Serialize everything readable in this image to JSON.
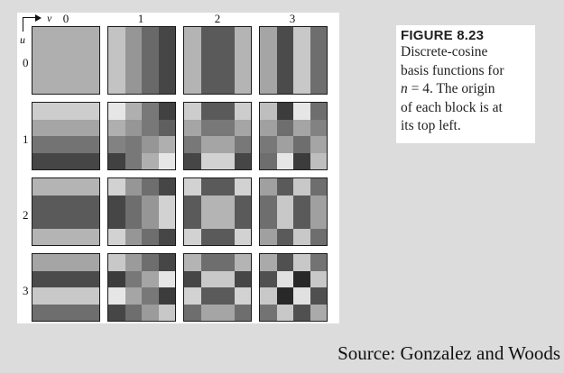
{
  "figure": {
    "axis_v_label": "v",
    "axis_u_label": "u",
    "column_labels": [
      "0",
      "1",
      "2",
      "3"
    ],
    "row_labels": [
      "0",
      "1",
      "2",
      "3"
    ],
    "blocks": [
      [
        [
          [
            175,
            175,
            175,
            175
          ],
          [
            175,
            175,
            175,
            175
          ],
          [
            175,
            175,
            175,
            175
          ],
          [
            175,
            175,
            175,
            175
          ]
        ],
        [
          [
            195,
            150,
            105,
            70
          ],
          [
            195,
            150,
            105,
            70
          ],
          [
            195,
            150,
            105,
            70
          ],
          [
            195,
            150,
            105,
            70
          ]
        ],
        [
          [
            180,
            90,
            90,
            180
          ],
          [
            180,
            90,
            90,
            180
          ],
          [
            180,
            90,
            90,
            180
          ],
          [
            180,
            90,
            90,
            180
          ]
        ],
        [
          [
            165,
            75,
            200,
            110
          ],
          [
            165,
            75,
            200,
            110
          ],
          [
            165,
            75,
            200,
            110
          ],
          [
            165,
            75,
            200,
            110
          ]
        ]
      ],
      [
        [
          [
            205,
            205,
            205,
            205
          ],
          [
            165,
            165,
            165,
            165
          ],
          [
            115,
            115,
            115,
            115
          ],
          [
            70,
            70,
            70,
            70
          ]
        ],
        [
          [
            230,
            175,
            120,
            65
          ],
          [
            175,
            150,
            120,
            95
          ],
          [
            130,
            120,
            150,
            175
          ],
          [
            65,
            120,
            175,
            230
          ]
        ],
        [
          [
            205,
            90,
            90,
            205
          ],
          [
            165,
            120,
            120,
            165
          ],
          [
            120,
            165,
            165,
            120
          ],
          [
            70,
            210,
            210,
            70
          ]
        ],
        [
          [
            190,
            60,
            230,
            110
          ],
          [
            160,
            110,
            165,
            130
          ],
          [
            120,
            160,
            110,
            165
          ],
          [
            110,
            230,
            60,
            190
          ]
        ]
      ],
      [
        [
          [
            180,
            180,
            180,
            180
          ],
          [
            90,
            90,
            90,
            90
          ],
          [
            90,
            90,
            90,
            90
          ],
          [
            180,
            180,
            180,
            180
          ]
        ],
        [
          [
            210,
            150,
            110,
            70
          ],
          [
            70,
            110,
            150,
            210
          ],
          [
            70,
            110,
            150,
            210
          ],
          [
            210,
            150,
            110,
            70
          ]
        ],
        [
          [
            210,
            90,
            90,
            210
          ],
          [
            90,
            180,
            180,
            90
          ],
          [
            90,
            180,
            180,
            90
          ],
          [
            210,
            90,
            90,
            210
          ]
        ],
        [
          [
            160,
            90,
            200,
            110
          ],
          [
            110,
            200,
            90,
            160
          ],
          [
            110,
            200,
            90,
            160
          ],
          [
            160,
            90,
            200,
            110
          ]
        ]
      ],
      [
        [
          [
            165,
            165,
            165,
            165
          ],
          [
            75,
            75,
            75,
            75
          ],
          [
            200,
            200,
            200,
            200
          ],
          [
            110,
            110,
            110,
            110
          ]
        ],
        [
          [
            200,
            155,
            110,
            70
          ],
          [
            60,
            120,
            165,
            230
          ],
          [
            230,
            165,
            120,
            60
          ],
          [
            70,
            110,
            155,
            200
          ]
        ],
        [
          [
            180,
            110,
            110,
            180
          ],
          [
            70,
            200,
            200,
            70
          ],
          [
            210,
            90,
            90,
            210
          ],
          [
            110,
            165,
            165,
            110
          ]
        ],
        [
          [
            170,
            80,
            200,
            115
          ],
          [
            80,
            225,
            40,
            200
          ],
          [
            200,
            40,
            225,
            80
          ],
          [
            115,
            200,
            80,
            170
          ]
        ]
      ]
    ]
  },
  "caption": {
    "label": "FIGURE 8.23",
    "line1": "Discrete-cosine",
    "line2": "basis functions for",
    "line3_var": "n",
    "line3_rest": " = 4. The origin",
    "line4": "of each block is at",
    "line5": "its top left."
  },
  "source": "Source: Gonzalez and Woods"
}
